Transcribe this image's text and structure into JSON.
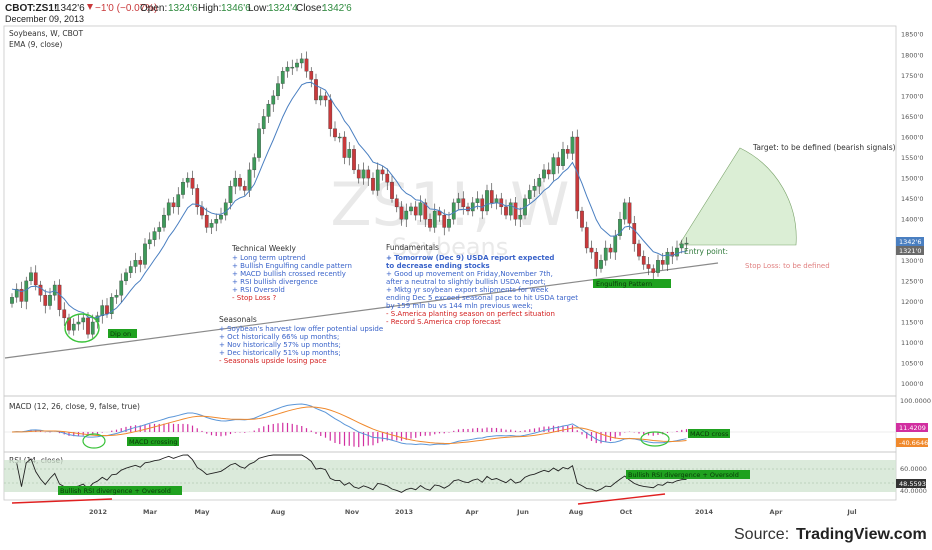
{
  "header": {
    "symbol": "CBOT:ZS1!",
    "last": "1342'6",
    "change": "−1'0 (−0.07%)",
    "open_label": "Open:",
    "open": "1324'6",
    "high_label": "High:",
    "high": "1346'6",
    "low_label": "Low:",
    "low": "1324'4",
    "close_label": "Close:",
    "close": "1342'6",
    "date": "December 09, 2013"
  },
  "pane_titles": {
    "main": "Soybeans, W, CBOT",
    "ema": "EMA (9, close)",
    "macd": "MACD (12, 26, close, 9, false, true)",
    "rsi": "RSI (14, close)"
  },
  "watermark": {
    "symbol": "ZS1!, W",
    "name": "Soybeans"
  },
  "annotations": {
    "technical": {
      "title": "Technical Weekly",
      "lines": [
        "+ Long term uptrend",
        "+ Bullish Engulfing candle pattern",
        "+ MACD bullish crossed recently",
        "+ RSI bullish divergence",
        "+ RSI Oversold"
      ],
      "stop": "- Stop Loss ?"
    },
    "seasonals": {
      "title": "Seasonals",
      "lines": [
        "+ Soybean's harvest low offer potential upside",
        "+ Oct historically 66% up months;",
        "+ Nov historically 57% up months;",
        "+ Dec historically 51% up months;"
      ],
      "neg": "- Seasonals upside losing pace"
    },
    "fundamentals": {
      "title": "Fundamentals",
      "bold1": "+ Tomorrow (Dec 9) USDA report expected",
      "bold2": "to decrease ending stocks",
      "lines": [
        "+ Good up movement on Friday,November 7th,",
        "after a neutral to slightly bullish USDA report;",
        "+ Mktg yr soybean export shipments for week",
        "ending Dec 5 exceed seasonal pace to hit USDA target",
        "by 159 mln bu vs 144 mln previous week;"
      ],
      "neg1": "- S.America planting season on perfect situation",
      "neg2": "- Record S.America crop forecast"
    },
    "target": "Target: to be defined (bearish signals)",
    "entry": "Entry point:",
    "stop_loss": "Stop Loss: to be defined",
    "dip": "Dip on",
    "engulfing": "Engulfing Pattern",
    "macd_crossing": "MACD crossing",
    "macd_cross": "MACD cross",
    "rsi_div_left": "Bullish RSI divergence + Oversold",
    "rsi_div_right": "Bullish RSI divergence + Oversold"
  },
  "price_tags": {
    "last": "1342'6",
    "ema": "1321'0",
    "macd1": "11.4209",
    "macd2": "-40.6646",
    "rsi": "48.5593"
  },
  "source": {
    "prefix": "Source:",
    "brand": "TradingView.com"
  },
  "colors": {
    "up": "#3e9a5a",
    "down": "#c9393b",
    "ema": "#4a7fc1",
    "macd": "#5b96d8",
    "signal": "#f0892c",
    "hist": "#d12fa0",
    "rsi": "#222222",
    "rsi_band": "#cfe3cf",
    "trend": "#888888",
    "target_fill": "#dbeed5",
    "green_label": "#1fa11f"
  },
  "chart_data": [
    {
      "type": "candlestick",
      "title": "Soybeans, W, CBOT",
      "x_ticks": [
        "2012",
        "Mar",
        "May",
        "Aug",
        "Nov",
        "2013",
        "Apr",
        "Jun",
        "Aug",
        "Oct",
        "2014",
        "Apr",
        "Jul"
      ],
      "y_ticks": [
        "1850'0",
        "1800'0",
        "1750'0",
        "1700'0",
        "1650'0",
        "1600'0",
        "1550'0",
        "1500'0",
        "1450'0",
        "1400'0",
        "1350'0",
        "1300'0",
        "1250'0",
        "1200'0",
        "1150'0",
        "1100'0",
        "1050'0",
        "1000'0"
      ],
      "ylim": [
        970,
        1870
      ],
      "closes": [
        1210,
        1230,
        1200,
        1250,
        1270,
        1240,
        1215,
        1190,
        1215,
        1240,
        1180,
        1160,
        1130,
        1145,
        1150,
        1160,
        1120,
        1150,
        1165,
        1190,
        1170,
        1210,
        1215,
        1250,
        1270,
        1285,
        1300,
        1290,
        1340,
        1350,
        1370,
        1380,
        1410,
        1440,
        1430,
        1460,
        1490,
        1500,
        1475,
        1430,
        1410,
        1380,
        1390,
        1400,
        1410,
        1440,
        1480,
        1500,
        1480,
        1470,
        1520,
        1550,
        1620,
        1650,
        1680,
        1700,
        1730,
        1760,
        1770,
        1770,
        1780,
        1790,
        1760,
        1740,
        1690,
        1700,
        1690,
        1620,
        1600,
        1600,
        1550,
        1570,
        1520,
        1500,
        1520,
        1500,
        1470,
        1520,
        1510,
        1490,
        1450,
        1430,
        1400,
        1420,
        1430,
        1410,
        1440,
        1400,
        1380,
        1420,
        1410,
        1380,
        1400,
        1440,
        1450,
        1430,
        1420,
        1440,
        1450,
        1420,
        1470,
        1440,
        1450,
        1430,
        1410,
        1440,
        1400,
        1410,
        1450,
        1470,
        1480,
        1500,
        1520,
        1510,
        1550,
        1530,
        1570,
        1560,
        1600,
        1420,
        1380,
        1330,
        1320,
        1280,
        1300,
        1330,
        1320,
        1360,
        1400,
        1440,
        1390,
        1340,
        1310,
        1290,
        1280,
        1270,
        1300,
        1290,
        1320,
        1310,
        1330,
        1340,
        1342
      ],
      "ema": [
        1230,
        1228,
        1224,
        1228,
        1236,
        1237,
        1233,
        1224,
        1222,
        1226,
        1217,
        1206,
        1191,
        1182,
        1176,
        1173,
        1162,
        1160,
        1161,
        1167,
        1168,
        1176,
        1184,
        1197,
        1212,
        1227,
        1241,
        1251,
        1269,
        1285,
        1302,
        1318,
        1336,
        1357,
        1372,
        1390,
        1409,
        1428,
        1437,
        1436,
        1431,
        1421,
        1415,
        1412,
        1412,
        1418,
        1430,
        1445,
        1452,
        1456,
        1469,
        1485,
        1512,
        1540,
        1567,
        1593,
        1621,
        1649,
        1673,
        1693,
        1710,
        1727,
        1732,
        1733,
        1725,
        1720,
        1714,
        1695,
        1676,
        1661,
        1639,
        1625,
        1604,
        1583,
        1570,
        1556,
        1539,
        1535,
        1530,
        1522,
        1507,
        1492,
        1474,
        1463,
        1457,
        1447,
        1446,
        1437,
        1425,
        1424,
        1421,
        1413,
        1410,
        1416,
        1423,
        1424,
        1424,
        1427,
        1432,
        1429,
        1437,
        1438,
        1440,
        1438,
        1432,
        1434,
        1427,
        1424,
        1429,
        1437,
        1446,
        1457,
        1470,
        1478,
        1492,
        1500,
        1514,
        1523,
        1538,
        1514,
        1487,
        1456,
        1428,
        1399,
        1379,
        1369,
        1359,
        1359,
        1367,
        1381,
        1383,
        1374,
        1361,
        1347,
        1334,
        1321,
        1317,
        1311,
        1313,
        1312,
        1316,
        1321,
        1321
      ],
      "trendline": {
        "from": [
          1102,
          "2011-10"
        ],
        "to": [
          1285,
          "2013-12"
        ]
      }
    },
    {
      "type": "line",
      "title": "MACD (12, 26, close, 9, false, true)",
      "y_ticks": [
        "100.0000"
      ],
      "last_values": {
        "macd": 11.4209,
        "signal": -40.6646
      }
    },
    {
      "type": "line",
      "title": "RSI (14, close)",
      "y_ticks": [
        "60.0000",
        "40.0000"
      ],
      "band": [
        30,
        70
      ],
      "last_value": 48.5593
    }
  ]
}
